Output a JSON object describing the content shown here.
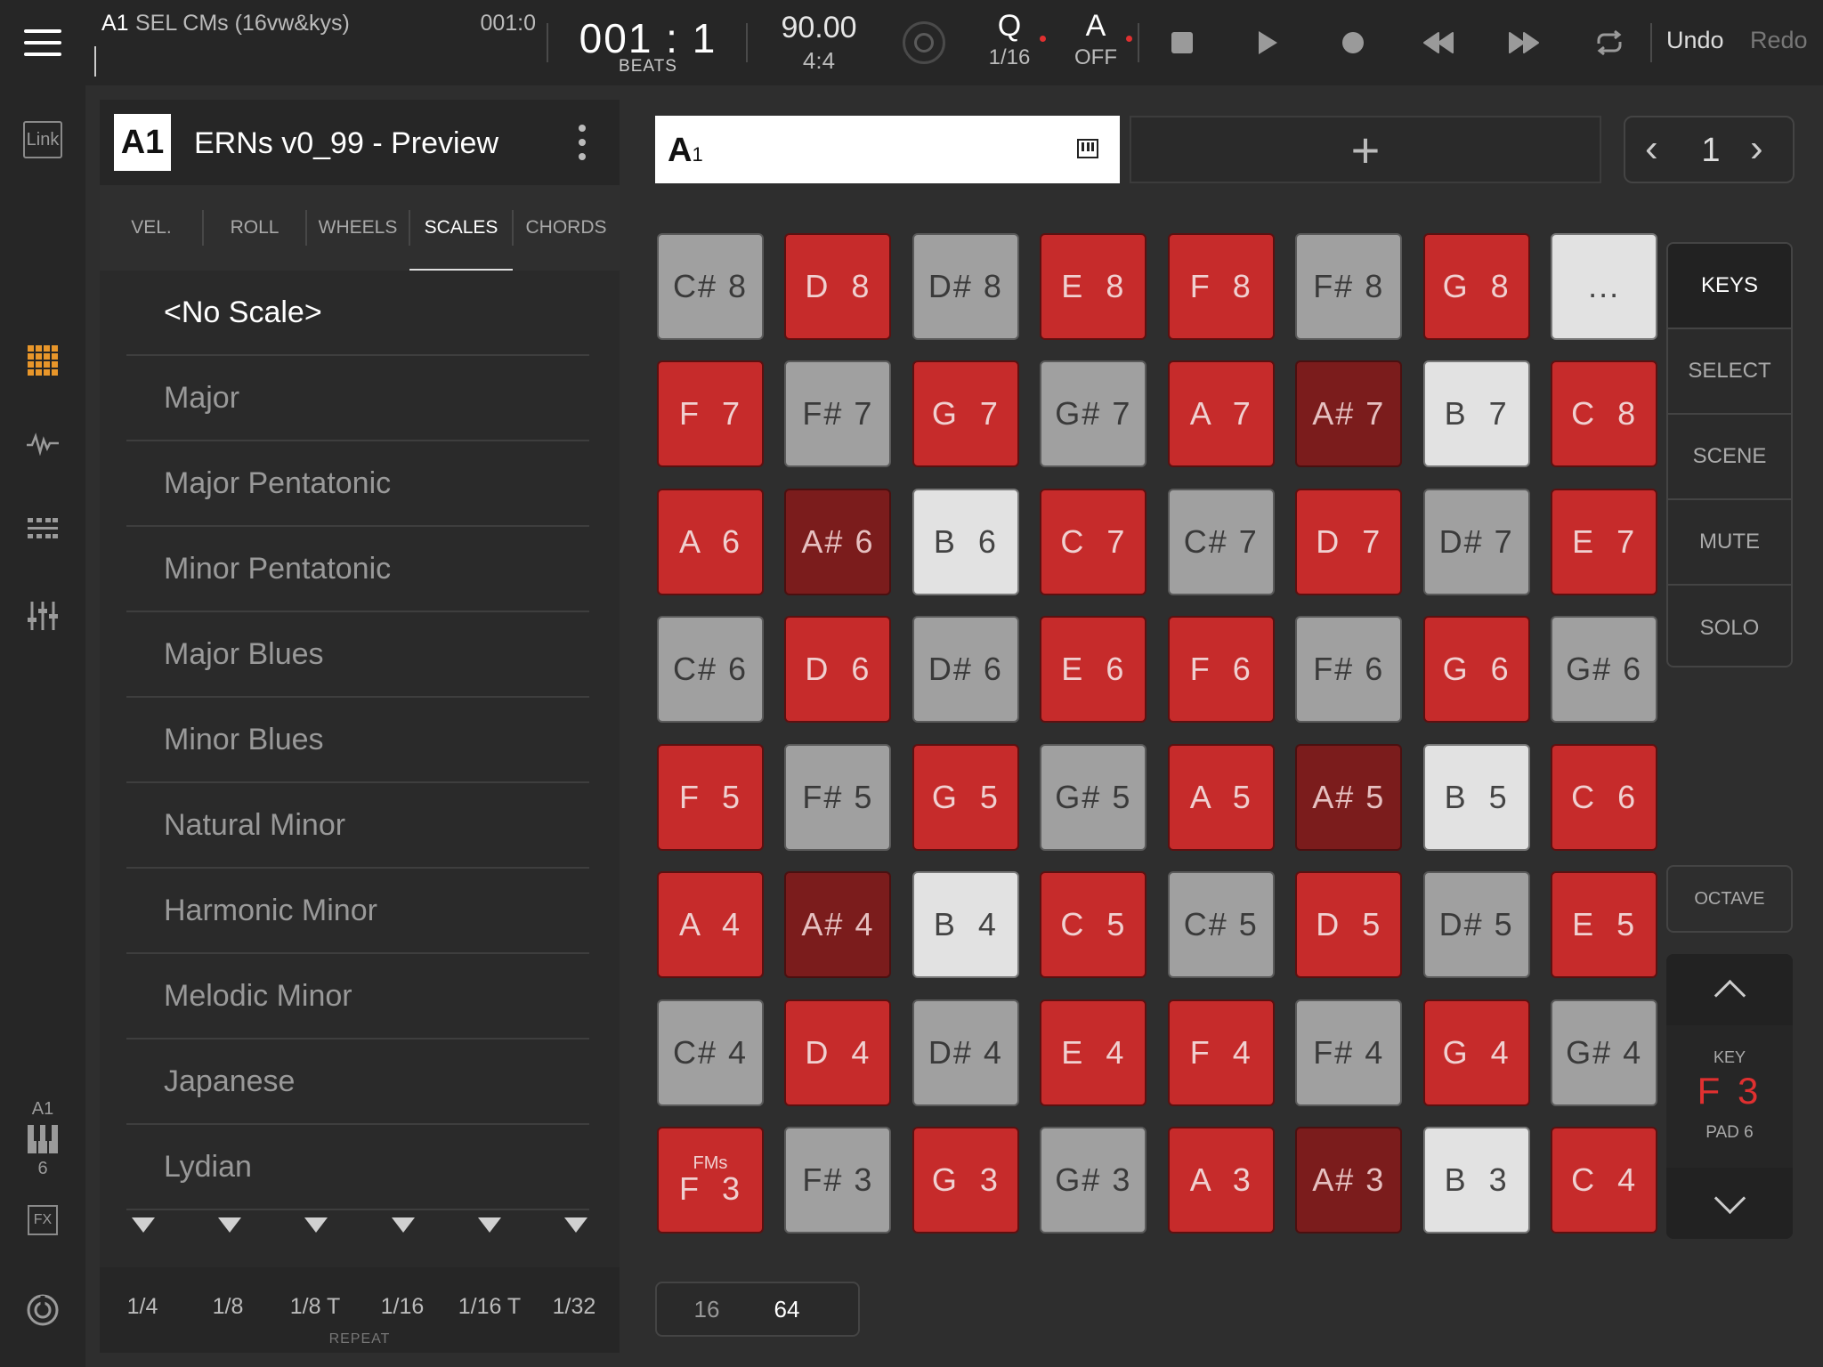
{
  "topbar": {
    "track_id": "A1",
    "track_name": "SEL CMs (16vw&kys)",
    "position": "001:0",
    "counter": "001 : 1",
    "counter_unit": "BEATS",
    "tempo": "90.00",
    "signature": "4:4",
    "quantize_label": "Q",
    "quantize_value": "1/16",
    "auto_label": "A",
    "auto_value": "OFF",
    "undo": "Undo",
    "redo": "Redo"
  },
  "leftbar": {
    "link_label": "Link",
    "track_label": "A1",
    "track_pad": "6",
    "fx_label": "FX"
  },
  "panel": {
    "badge": "A1",
    "title": "ERNs v0_99 - Preview",
    "tabs": [
      "VEL.",
      "ROLL",
      "WHEELS",
      "SCALES",
      "CHORDS"
    ],
    "active_tab": "SCALES",
    "scales": [
      "<No Scale>",
      "Major",
      "Major Pentatonic",
      "Minor Pentatonic",
      "Major Blues",
      "Minor Blues",
      "Natural Minor",
      "Harmonic Minor",
      "Melodic Minor",
      "Japanese",
      "Lydian"
    ],
    "selected_scale": "<No Scale>",
    "repeat_options": [
      "1/4",
      "1/8",
      "1/8 T",
      "1/16",
      "1/16 T",
      "1/32"
    ],
    "repeat_label": "REPEAT"
  },
  "clips": {
    "current_letter": "A",
    "current_num": "1",
    "add_label": "+",
    "page": "1"
  },
  "pads": [
    [
      {
        "n": "C# 8",
        "c": "gray"
      },
      {
        "n": "D  8",
        "c": "red"
      },
      {
        "n": "D# 8",
        "c": "gray"
      },
      {
        "n": "E  8",
        "c": "red"
      },
      {
        "n": "F  8",
        "c": "red"
      },
      {
        "n": "F# 8",
        "c": "gray"
      },
      {
        "n": "G  8",
        "c": "red"
      },
      {
        "n": "...",
        "c": "white"
      }
    ],
    [
      {
        "n": "F  7",
        "c": "red"
      },
      {
        "n": "F# 7",
        "c": "gray"
      },
      {
        "n": "G  7",
        "c": "red"
      },
      {
        "n": "G# 7",
        "c": "gray"
      },
      {
        "n": "A  7",
        "c": "red"
      },
      {
        "n": "A# 7",
        "c": "dark"
      },
      {
        "n": "B  7",
        "c": "white"
      },
      {
        "n": "C  8",
        "c": "red"
      }
    ],
    [
      {
        "n": "A  6",
        "c": "red"
      },
      {
        "n": "A# 6",
        "c": "dark"
      },
      {
        "n": "B  6",
        "c": "white"
      },
      {
        "n": "C  7",
        "c": "red"
      },
      {
        "n": "C# 7",
        "c": "gray"
      },
      {
        "n": "D  7",
        "c": "red"
      },
      {
        "n": "D# 7",
        "c": "gray"
      },
      {
        "n": "E  7",
        "c": "red"
      }
    ],
    [
      {
        "n": "C# 6",
        "c": "gray"
      },
      {
        "n": "D  6",
        "c": "red"
      },
      {
        "n": "D# 6",
        "c": "gray"
      },
      {
        "n": "E  6",
        "c": "red"
      },
      {
        "n": "F  6",
        "c": "red"
      },
      {
        "n": "F# 6",
        "c": "gray"
      },
      {
        "n": "G  6",
        "c": "red"
      },
      {
        "n": "G# 6",
        "c": "gray"
      }
    ],
    [
      {
        "n": "F  5",
        "c": "red"
      },
      {
        "n": "F# 5",
        "c": "gray"
      },
      {
        "n": "G  5",
        "c": "red"
      },
      {
        "n": "G# 5",
        "c": "gray"
      },
      {
        "n": "A  5",
        "c": "red"
      },
      {
        "n": "A# 5",
        "c": "dark"
      },
      {
        "n": "B  5",
        "c": "white"
      },
      {
        "n": "C  6",
        "c": "red"
      }
    ],
    [
      {
        "n": "A  4",
        "c": "red"
      },
      {
        "n": "A# 4",
        "c": "dark"
      },
      {
        "n": "B  4",
        "c": "white"
      },
      {
        "n": "C  5",
        "c": "red"
      },
      {
        "n": "C# 5",
        "c": "gray"
      },
      {
        "n": "D  5",
        "c": "red"
      },
      {
        "n": "D# 5",
        "c": "gray"
      },
      {
        "n": "E  5",
        "c": "red"
      }
    ],
    [
      {
        "n": "C# 4",
        "c": "gray"
      },
      {
        "n": "D  4",
        "c": "red"
      },
      {
        "n": "D# 4",
        "c": "gray"
      },
      {
        "n": "E  4",
        "c": "red"
      },
      {
        "n": "F  4",
        "c": "red"
      },
      {
        "n": "F# 4",
        "c": "gray"
      },
      {
        "n": "G  4",
        "c": "red"
      },
      {
        "n": "G# 4",
        "c": "gray"
      }
    ],
    [
      {
        "n": "F  3",
        "c": "red",
        "sub": "FMs"
      },
      {
        "n": "F# 3",
        "c": "gray"
      },
      {
        "n": "G  3",
        "c": "red"
      },
      {
        "n": "G# 3",
        "c": "gray"
      },
      {
        "n": "A  3",
        "c": "red"
      },
      {
        "n": "A# 3",
        "c": "dark"
      },
      {
        "n": "B  3",
        "c": "white"
      },
      {
        "n": "C  4",
        "c": "red"
      }
    ]
  ],
  "modes": [
    "KEYS",
    "SELECT",
    "SCENE",
    "MUTE",
    "SOLO"
  ],
  "active_mode": "KEYS",
  "octave": {
    "label": "OCTAVE",
    "key_label": "KEY",
    "key_value": "F 3",
    "pad_label": "PAD 6"
  },
  "pad_pages": [
    "16",
    "64"
  ],
  "active_pad_page": "64",
  "colors": {
    "pad_red": "#c62b2b",
    "pad_dark_red": "#7b1c1c",
    "pad_gray": "#a0a0a0",
    "pad_white": "#e2e2e2",
    "accent_orange": "#e8962a",
    "key_red": "#e03030"
  },
  "icons": [
    "menu-icon",
    "link-icon",
    "pad-grid-icon",
    "waveform-icon",
    "sequencer-icon",
    "mixer-icon",
    "keyboard-icon",
    "fx-icon",
    "settings-icon",
    "metronome-icon",
    "stop-icon",
    "play-icon",
    "record-icon",
    "rewind-icon",
    "fast-forward-icon",
    "loop-icon",
    "kebab-menu-icon",
    "piano-icon"
  ]
}
